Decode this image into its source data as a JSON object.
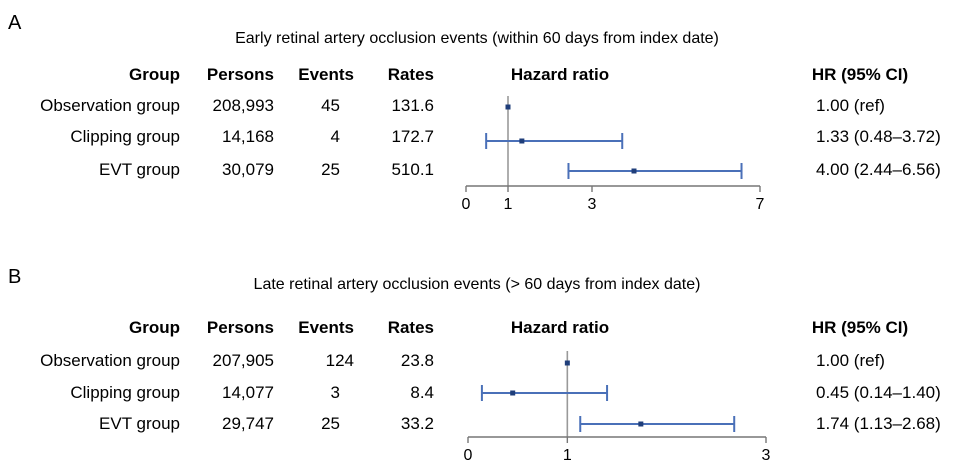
{
  "chart_data": [
    {
      "type": "forest",
      "panel_label": "A",
      "title": "Early retinal artery occlusion events (within 60 days from index date)",
      "columns": {
        "group": "Group",
        "persons": "Persons",
        "events": "Events",
        "rates": "Rates",
        "plot": "Hazard ratio",
        "hr": "HR (95% CI)"
      },
      "rows": [
        {
          "group": "Observation group",
          "persons": "208,993",
          "events": "45",
          "rates": "131.6",
          "hr": 1.0,
          "lo": 1.0,
          "hi": 1.0,
          "hr_text": "1.00 (ref)"
        },
        {
          "group": "Clipping group",
          "persons": "14,168",
          "events": "4",
          "rates": "172.7",
          "hr": 1.33,
          "lo": 0.48,
          "hi": 3.72,
          "hr_text": "1.33 (0.48–3.72)"
        },
        {
          "group": "EVT group",
          "persons": "30,079",
          "events": "25",
          "rates": "510.1",
          "hr": 4.0,
          "lo": 2.44,
          "hi": 6.56,
          "hr_text": "4.00 (2.44–6.56)"
        }
      ],
      "xlim": [
        0,
        7
      ],
      "xticks": [
        0,
        1,
        3,
        7
      ],
      "xtick_labels": [
        "0",
        "1",
        "3",
        "7"
      ],
      "reference_line": 1,
      "colors": {
        "ci": "#4a70b8",
        "point": "#1f3e7a",
        "axis": "#777777",
        "ref": "#999999"
      }
    },
    {
      "type": "forest",
      "panel_label": "B",
      "title": "Late retinal artery occlusion events (> 60 days from index date)",
      "columns": {
        "group": "Group",
        "persons": "Persons",
        "events": "Events",
        "rates": "Rates",
        "plot": "Hazard ratio",
        "hr": "HR (95% CI)"
      },
      "rows": [
        {
          "group": "Observation group",
          "persons": "207,905",
          "events": "124",
          "rates": "23.8",
          "hr": 1.0,
          "lo": 1.0,
          "hi": 1.0,
          "hr_text": "1.00 (ref)"
        },
        {
          "group": "Clipping group",
          "persons": "14,077",
          "events": "3",
          "rates": "8.4",
          "hr": 0.45,
          "lo": 0.14,
          "hi": 1.4,
          "hr_text": "0.45 (0.14–1.40)"
        },
        {
          "group": "EVT group",
          "persons": "29,747",
          "events": "25",
          "rates": "33.2",
          "hr": 1.74,
          "lo": 1.13,
          "hi": 2.68,
          "hr_text": "1.74 (1.13–2.68)"
        }
      ],
      "xlim": [
        0,
        3
      ],
      "xticks": [
        0,
        1,
        3
      ],
      "xtick_labels": [
        "0",
        "1",
        "3"
      ],
      "reference_line": 1,
      "colors": {
        "ci": "#4a70b8",
        "point": "#1f3e7a",
        "axis": "#777777",
        "ref": "#999999"
      }
    }
  ]
}
